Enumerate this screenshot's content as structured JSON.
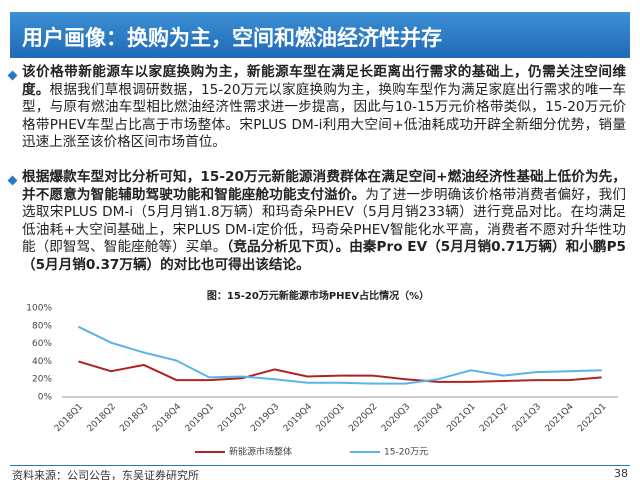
{
  "header": {
    "title": "用户画像：换购为主，空间和燃油经济性并存"
  },
  "bullets": [
    {
      "segments": [
        {
          "text": "该价格带新能源车以家庭换购为主，新能源车型在满足长距离出行需求的基础上，仍需关注空间维度。",
          "bold": true
        },
        {
          "text": "根据我们草根调研数据，15-20万元以家庭换购为主，换购车型作为满足家庭出行需求的唯一车型，与原有燃油车型相比燃油经济性需求进一步提高，因此与10-15万元价格带类似，15-20万元价格带PHEV车型占比高于市场整体。宋PLUS DM-i利用大空间+低油耗成功开辟全新细分优势，销量迅速上涨至该价格区间市场首位。",
          "bold": false
        }
      ]
    },
    {
      "segments": [
        {
          "text": "根据爆款车型对比分析可知，15-20万元新能源消费群体在满足空间+燃油经济性基础上低价为先，并不愿意为智能辅助驾驶功能和智能座舱功能支付溢价。",
          "bold": true
        },
        {
          "text": "为了进一步明确该价格带消费者偏好，我们选取宋PLUS DM-i（5月月销1.8万辆）和玛奇朵PHEV（5月月销233辆）进行竞品对比。在均满足低油耗+大空间基础上，宋PLUS DM-i定价低，玛奇朵PHEV智能化水平高，消费者不愿对升华性功能（即智驾、智能座舱等）买单。",
          "bold": false
        },
        {
          "text": "（竞品分析见下页）。由秦Pro EV（5月月销0.71万辆）和小鹏P5（5月月销0.37万辆）的对比也可得出该结论。",
          "bold": true
        }
      ]
    }
  ],
  "chart_data": {
    "type": "line",
    "title": "图：15-20万元新能源市场PHEV占比情况（%）",
    "categories": [
      "2018Q1",
      "2018Q2",
      "2018Q3",
      "2018Q4",
      "2019Q1",
      "2019Q2",
      "2019Q3",
      "2019Q4",
      "2020Q1",
      "2020Q2",
      "2020Q3",
      "2020Q4",
      "2021Q1",
      "2021Q2",
      "2021Q3",
      "2021Q4",
      "2022Q1"
    ],
    "series": [
      {
        "name": "新能源市场整体",
        "color": "#b22222",
        "values": [
          40,
          29,
          36,
          19,
          19,
          21,
          31,
          23,
          24,
          24,
          20,
          17,
          17,
          18,
          19,
          19,
          22
        ]
      },
      {
        "name": "15-20万元",
        "color": "#5ab4e5",
        "values": [
          79,
          61,
          50,
          41,
          22,
          23,
          20,
          16,
          16,
          15,
          15,
          20,
          30,
          24,
          28,
          29,
          30
        ]
      }
    ],
    "ylim": [
      0,
      100
    ],
    "yticks": [
      {
        "value": 0,
        "label": "0%"
      },
      {
        "value": 20,
        "label": "20%"
      },
      {
        "value": 40,
        "label": "40%"
      },
      {
        "value": 60,
        "label": "60%"
      },
      {
        "value": 80,
        "label": "80%"
      },
      {
        "value": 100,
        "label": "100%"
      }
    ],
    "grid": false,
    "legend": "bottom"
  },
  "footer": {
    "source": "资料来源：公司公告，东吴证券研究所",
    "page": "38"
  }
}
